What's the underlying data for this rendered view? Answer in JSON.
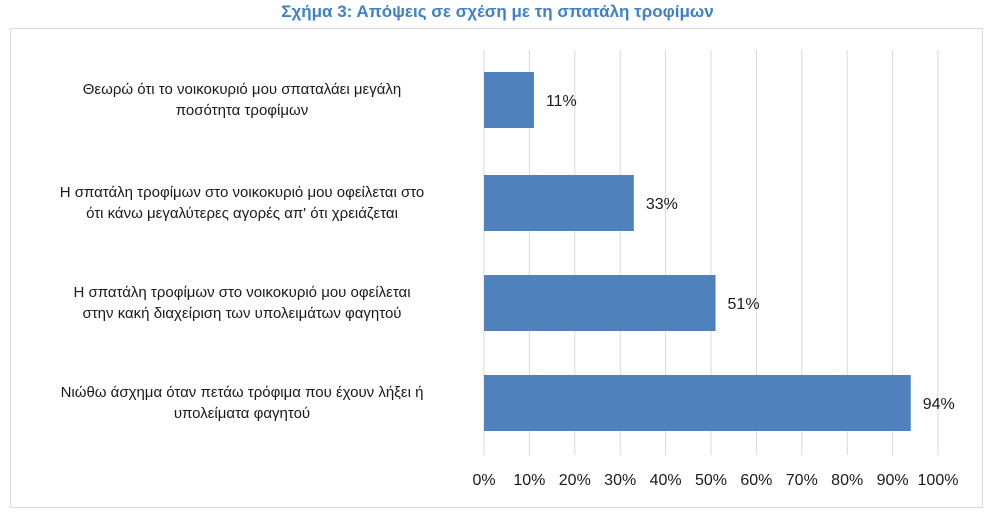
{
  "chart_data": {
    "type": "bar",
    "orientation": "horizontal",
    "title": "Σχήμα 3: Απόψεις σε σχέση με τη σπατάλη τροφίμων",
    "categories": [
      "Θεωρώ ότι το νοικοκυριό μου σπαταλάει μεγάλη ποσότητα τροφίμων",
      "Η σπατάλη τροφίμων στο νοικοκυριό μου οφείλεται στο ότι κάνω μεγαλύτερες αγορές απ' ότι χρειάζεται",
      "Η σπατάλη τροφίμων στο νοικοκυριό μου οφείλεται στην κακή διαχείριση των υπολειμάτων φαγητού",
      "Νιώθω άσχημα όταν πετάω τρόφιμα που έχουν λήξει ή υπολείματα φαγητού"
    ],
    "category_lines": [
      [
        "Θεωρώ ότι το νοικοκυριό μου σπαταλάει μεγάλη",
        "ποσότητα τροφίμων"
      ],
      [
        "Η σπατάλη τροφίμων στο νοικοκυριό μου οφείλεται στο",
        "ότι κάνω μεγαλύτερες αγορές απ' ότι χρειάζεται"
      ],
      [
        "Η σπατάλη τροφίμων στο νοικοκυριό μου οφείλεται",
        "στην κακή διαχείριση των υπολειμάτων φαγητού"
      ],
      [
        "Νιώθω άσχημα όταν πετάω τρόφιμα που έχουν λήξει ή",
        "υπολείματα φαγητού"
      ]
    ],
    "values": [
      11,
      33,
      51,
      94
    ],
    "data_labels": [
      "11%",
      "33%",
      "51%",
      "94%"
    ],
    "xlim": [
      0,
      100
    ],
    "x_ticks": [
      "0%",
      "10%",
      "20%",
      "30%",
      "40%",
      "50%",
      "60%",
      "70%",
      "80%",
      "90%",
      "100%"
    ],
    "grid": true,
    "bar_color": "#4f81bd",
    "grid_color": "#d9d9d9",
    "title_color": "#3f7fcb"
  }
}
